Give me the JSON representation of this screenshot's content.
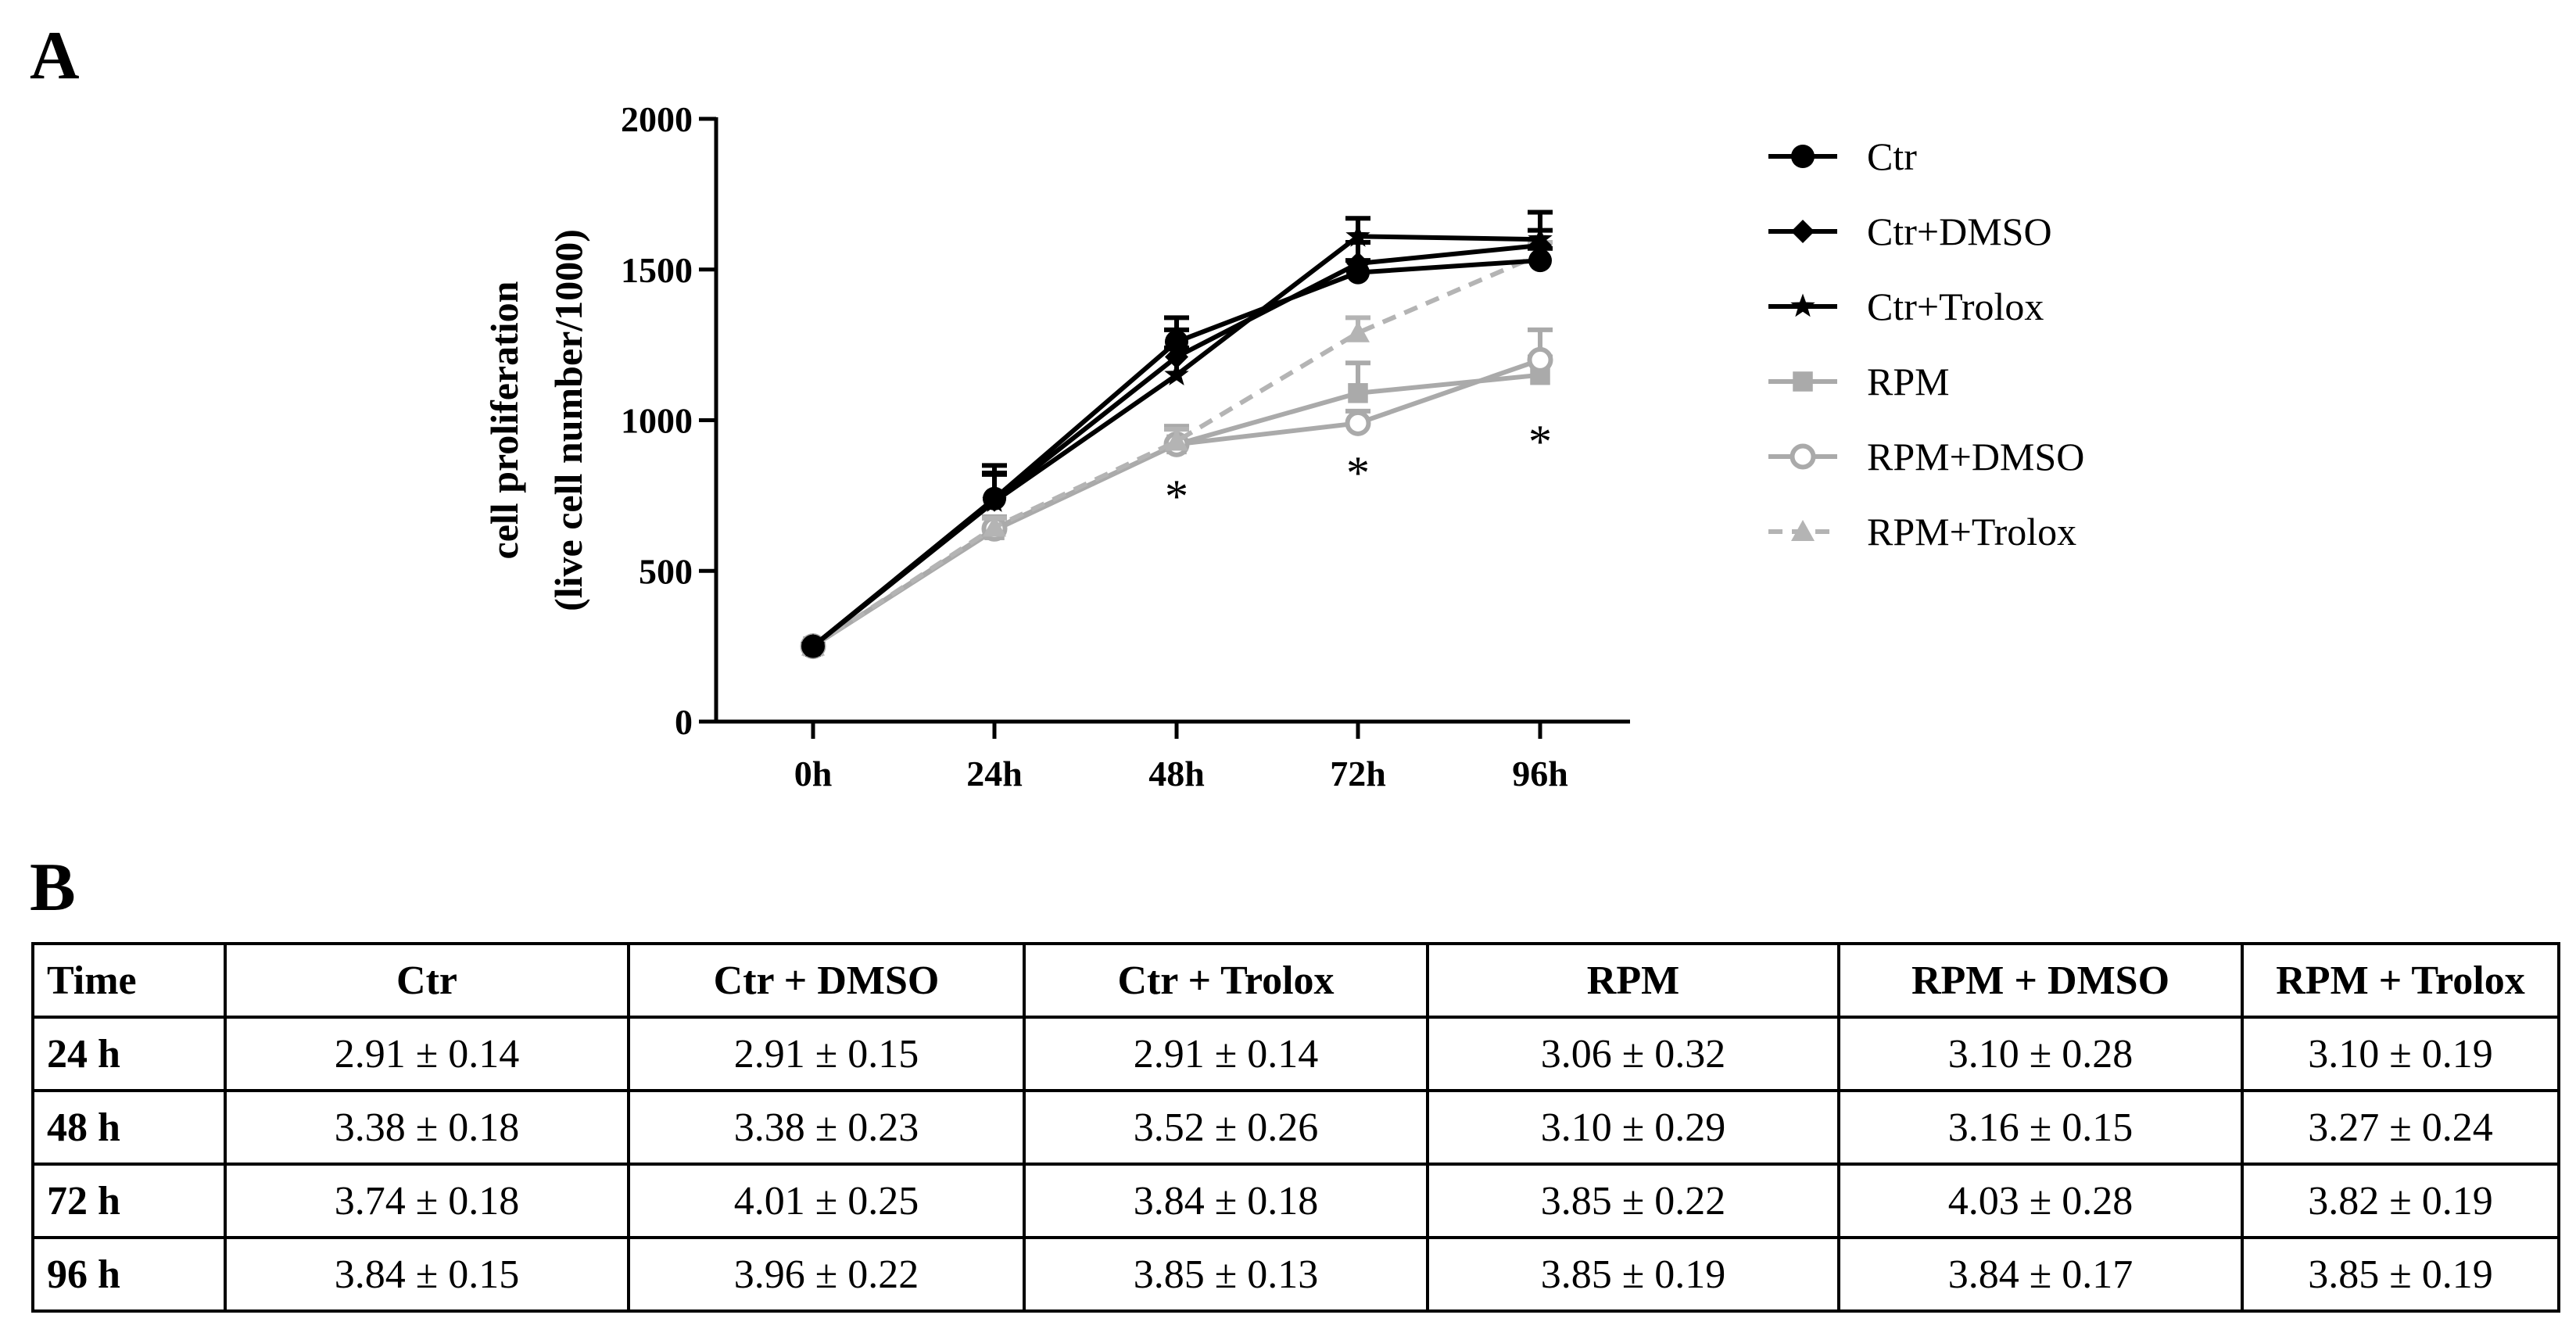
{
  "panel_a_label": "A",
  "panel_b_label": "B",
  "chart_data": {
    "type": "line",
    "title": "",
    "xlabel": "",
    "ylabel": [
      "cell proliferation",
      "(live cell number/1000)"
    ],
    "categories": [
      "0h",
      "24h",
      "48h",
      "72h",
      "96h"
    ],
    "ylim": [
      0,
      2000
    ],
    "yticks": [
      0,
      500,
      1000,
      1500,
      2000
    ],
    "legend_position": "right",
    "series": [
      {
        "name": "Ctr",
        "marker": "circle-filled",
        "color": "#000000",
        "values": [
          250,
          740,
          1260,
          1490,
          1530
        ],
        "errors": [
          0,
          110,
          80,
          40,
          40
        ]
      },
      {
        "name": "Ctr+DMSO",
        "marker": "diamond",
        "color": "#000000",
        "values": [
          250,
          735,
          1210,
          1520,
          1580
        ],
        "errors": [
          0,
          90,
          90,
          70,
          50
        ]
      },
      {
        "name": "Ctr+Trolox",
        "marker": "star",
        "color": "#000000",
        "values": [
          250,
          730,
          1150,
          1610,
          1600
        ],
        "errors": [
          0,
          90,
          90,
          60,
          90
        ]
      },
      {
        "name": "RPM",
        "marker": "square",
        "color": "#aaaaaa",
        "values": [
          250,
          635,
          920,
          1090,
          1150
        ],
        "errors": [
          0,
          40,
          60,
          100,
          60
        ]
      },
      {
        "name": "RPM+DMSO",
        "marker": "circle-open",
        "color": "#aaaaaa",
        "values": [
          250,
          640,
          920,
          990,
          1200
        ],
        "errors": [
          0,
          40,
          60,
          40,
          100
        ]
      },
      {
        "name": "RPM+Trolox",
        "marker": "triangle",
        "color": "#b4b4b4",
        "dashed": true,
        "values": [
          250,
          645,
          930,
          1290,
          1550
        ],
        "errors": [
          0,
          30,
          40,
          50,
          40
        ]
      }
    ],
    "annotations": [
      {
        "x": "48h",
        "text": "*"
      },
      {
        "x": "72h",
        "text": "*"
      },
      {
        "x": "96h",
        "text": "*"
      }
    ]
  },
  "table": {
    "headers": [
      "Time",
      "Ctr",
      "Ctr + DMSO",
      "Ctr + Trolox",
      "RPM",
      "RPM + DMSO",
      "RPM + Trolox"
    ],
    "rows": [
      [
        "24 h",
        "2.91 ± 0.14",
        "2.91 ± 0.15",
        "2.91 ± 0.14",
        "3.06 ± 0.32",
        "3.10 ± 0.28",
        "3.10 ± 0.19"
      ],
      [
        "48 h",
        "3.38 ± 0.18",
        "3.38 ± 0.23",
        "3.52 ± 0.26",
        "3.10 ± 0.29",
        "3.16 ± 0.15",
        "3.27 ± 0.24"
      ],
      [
        "72 h",
        "3.74 ± 0.18",
        "4.01 ± 0.25",
        "3.84 ± 0.18",
        "3.85 ± 0.22",
        "4.03 ± 0.28",
        "3.82 ± 0.19"
      ],
      [
        "96 h",
        "3.84 ±  0.15",
        "3.96 ± 0.22",
        "3.85 ± 0.13",
        "3.85 ± 0.19",
        "3.84 ± 0.17",
        "3.85 ± 0.19"
      ]
    ]
  }
}
